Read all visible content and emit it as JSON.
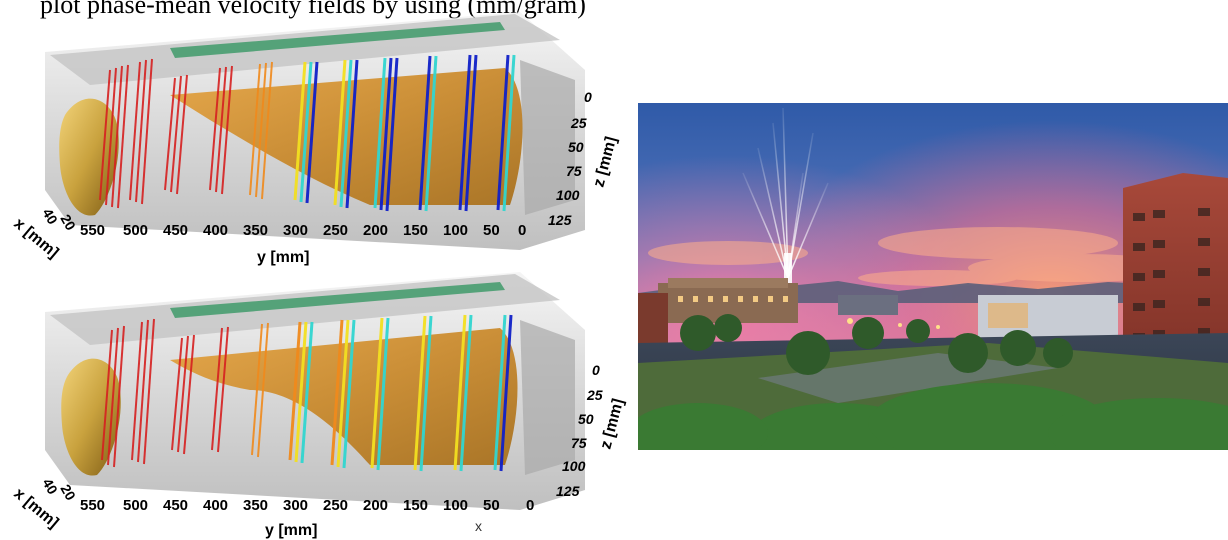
{
  "header": {
    "text": "plot phase-mean velocity fields by using (mm/gram)"
  },
  "top_figure": {
    "y_ticks": [
      "550",
      "500",
      "450",
      "400",
      "350",
      "300",
      "250",
      "200",
      "150",
      "100",
      "50",
      "0"
    ],
    "y_label": "y [mm]",
    "z_ticks": [
      "0",
      "25",
      "50",
      "75",
      "100",
      "125"
    ],
    "z_label": "z [mm]",
    "x_ticks": [
      "40",
      "20"
    ],
    "x_label": "x [mm]"
  },
  "bottom_figure": {
    "y_ticks": [
      "550",
      "500",
      "450",
      "400",
      "350",
      "300",
      "250",
      "200",
      "150",
      "100",
      "50",
      "0"
    ],
    "y_label": "y [mm]",
    "z_ticks": [
      "0",
      "25",
      "50",
      "75",
      "100",
      "125"
    ],
    "z_label": "z [mm]",
    "x_ticks": [
      "40",
      "20"
    ],
    "x_label": "x [mm]",
    "corner_mark": "x"
  },
  "colors": {
    "jet_red": "#d62020",
    "jet_orange": "#f08a1c",
    "jet_yellow": "#f3e020",
    "jet_cyan": "#31d6d0",
    "jet_blue": "#1020c8",
    "surface_gold": "#c98a2e",
    "housing_gray": "#9a9a9a",
    "housing_green": "#3f9a6a",
    "sky_blue": "#3f68b4",
    "sunset_pink": "#e16d86"
  }
}
